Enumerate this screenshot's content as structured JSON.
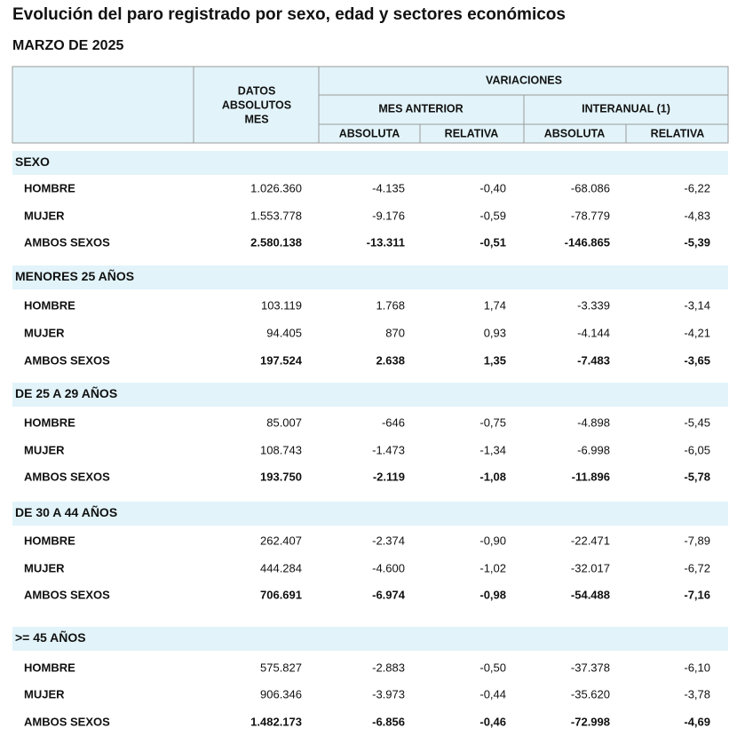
{
  "header": {
    "title": "Evolución del paro registrado por sexo, edad y sectores económicos",
    "subtitle": "MARZO DE 2025"
  },
  "table": {
    "columns": {
      "datos": [
        "DATOS",
        "ABSOLUTOS",
        "MES"
      ],
      "variaciones": "VARIACIONES",
      "mes_anterior": "MES ANTERIOR",
      "interanual": "INTERANUAL (1)",
      "sub": [
        "ABSOLUTA",
        "RELATIVA",
        "ABSOLUTA",
        "RELATIVA"
      ]
    },
    "sections": [
      {
        "label": "SEXO",
        "rows": [
          [
            "HOMBRE",
            "1.026.360",
            "-4.135",
            "-0,40",
            "-68.086",
            "-6,22"
          ],
          [
            "MUJER",
            "1.553.778",
            "-9.176",
            "-0,59",
            "-78.779",
            "-4,83"
          ],
          [
            "AMBOS SEXOS",
            "2.580.138",
            "-13.311",
            "-0,51",
            "-146.865",
            "-5,39"
          ]
        ]
      },
      {
        "label": "MENORES 25 AÑOS",
        "rows": [
          [
            "HOMBRE",
            "103.119",
            "1.768",
            "1,74",
            "-3.339",
            "-3,14"
          ],
          [
            "MUJER",
            "94.405",
            "870",
            "0,93",
            "-4.144",
            "-4,21"
          ],
          [
            "AMBOS SEXOS",
            "197.524",
            "2.638",
            "1,35",
            "-7.483",
            "-3,65"
          ]
        ]
      },
      {
        "label": "DE 25 A 29 AÑOS",
        "rows": [
          [
            "HOMBRE",
            "85.007",
            "-646",
            "-0,75",
            "-4.898",
            "-5,45"
          ],
          [
            "MUJER",
            "108.743",
            "-1.473",
            "-1,34",
            "-6.998",
            "-6,05"
          ],
          [
            "AMBOS SEXOS",
            "193.750",
            "-2.119",
            "-1,08",
            "-11.896",
            "-5,78"
          ]
        ]
      },
      {
        "label": "DE 30 A 44 AÑOS",
        "rows": [
          [
            "HOMBRE",
            "262.407",
            "-2.374",
            "-0,90",
            "-22.471",
            "-7,89"
          ],
          [
            "MUJER",
            "444.284",
            "-4.600",
            "-1,02",
            "-32.017",
            "-6,72"
          ],
          [
            "AMBOS SEXOS",
            "706.691",
            "-6.974",
            "-0,98",
            "-54.488",
            "-7,16"
          ]
        ]
      },
      {
        "label": ">= 45 AÑOS",
        "rows": [
          [
            "HOMBRE",
            "575.827",
            "-2.883",
            "-0,50",
            "-37.378",
            "-6,10"
          ],
          [
            "MUJER",
            "906.346",
            "-3.973",
            "-0,44",
            "-35.620",
            "-3,78"
          ],
          [
            "AMBOS SEXOS",
            "1.482.173",
            "-6.856",
            "-0,46",
            "-72.998",
            "-4,69"
          ]
        ]
      }
    ]
  }
}
